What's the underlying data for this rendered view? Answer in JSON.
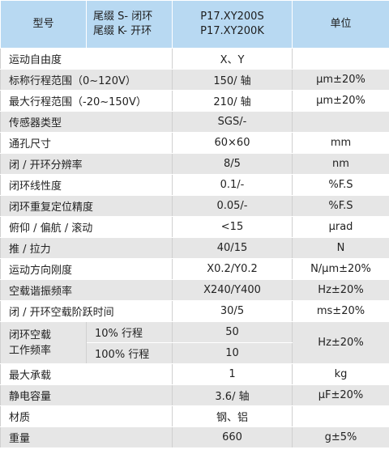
{
  "header": {
    "model": "型号",
    "suffix_s": "尾缀 S- 闭环",
    "suffix_k": "尾缀 K- 开环",
    "model_s": "P17.XY200S",
    "model_k": "P17.XY200K",
    "unit": "单位"
  },
  "rows": [
    {
      "label": "运动自由度",
      "value": "X、Y",
      "unit": ""
    },
    {
      "label": "标称行程范围（0~120V）",
      "value": "150/ 轴",
      "unit": "μm±20%"
    },
    {
      "label": "最大行程范围（-20~150V）",
      "value": "210/ 轴",
      "unit": "μm±20%"
    },
    {
      "label": "传感器类型",
      "value": "SGS/-",
      "unit": ""
    },
    {
      "label": "通孔尺寸",
      "value": "60×60",
      "unit": "mm"
    },
    {
      "label": "闭 / 开环分辨率",
      "value": "8/5",
      "unit": "nm"
    },
    {
      "label": "闭环线性度",
      "value": "0.1/-",
      "unit": "%F.S"
    },
    {
      "label": "闭环重复定位精度",
      "value": "0.05/-",
      "unit": "%F.S"
    },
    {
      "label": "俯仰 / 偏航 / 滚动",
      "value": "<15",
      "unit": "μrad"
    },
    {
      "label": "推 / 拉力",
      "value": "40/15",
      "unit": "N"
    },
    {
      "label": "运动方向刚度",
      "value": "X0.2/Y0.2",
      "unit": "N/μm±20%"
    },
    {
      "label": "空载谐振频率",
      "value": "X240/Y400",
      "unit": "Hz±20%"
    },
    {
      "label": "闭 / 开环空载阶跃时间",
      "value": "30/5",
      "unit": "ms±20%"
    }
  ],
  "closed_loop_freq": {
    "label_line1": "闭环空载",
    "label_line2": "工作频率",
    "sub1_label": "10% 行程",
    "sub1_value": "50",
    "sub2_label": "100% 行程",
    "sub2_value": "10",
    "unit": "Hz±20%"
  },
  "rows_after": [
    {
      "label": "最大承载",
      "value": "1",
      "unit": "kg"
    },
    {
      "label": "静电容量",
      "value": "3.6/ 轴",
      "unit": "μF±20%"
    },
    {
      "label": "材质",
      "value": "钢、铝",
      "unit": ""
    },
    {
      "label": "重量",
      "value": "660",
      "unit": "g±5%"
    }
  ],
  "colors": {
    "header_bg": "#b8d9f2",
    "row_alt_bg": "#e6e6e6",
    "row_bg": "#ffffff"
  }
}
